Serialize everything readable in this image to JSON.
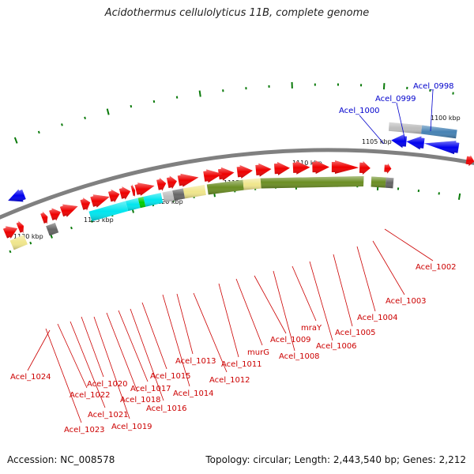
{
  "header": {
    "title": "Acidothermus cellulolyticus 11B, complete genome"
  },
  "footer": {
    "accession": "Accession: NC_008578",
    "summary": "Topology: circular; Length: 2,443,540 bp; Genes: 2,212"
  },
  "scale_labels": [
    "1100 kbp",
    "1105 kbp",
    "1110 kbp",
    "1115 kbp",
    "1120 kbp",
    "1125 kbp",
    "1130 kbp"
  ],
  "colors": {
    "forward_gene": "#0000ee",
    "reverse_gene": "#ee0000",
    "label_forward": "#0000cc",
    "label_reverse": "#cc0000",
    "backbone": "#808080",
    "tick": "#0a7a0a",
    "cat_olive": "#6b8e23",
    "cat_cyan": "#00e5ee",
    "cat_khaki": "#f0e68c",
    "cat_gray": "#bebebe",
    "cat_darkgray": "#666666",
    "cat_steel": "#4682b4",
    "cat_green": "#00cd00"
  },
  "forward_labels": [
    "Acel_0998",
    "Acel_0999",
    "Acel_1000"
  ],
  "reverse_labels": [
    "Acel_1002",
    "Acel_1003",
    "Acel_1004",
    "Acel_1005",
    "Acel_1006",
    "mraY",
    "Acel_1008",
    "Acel_1009",
    "murG",
    "Acel_1011",
    "Acel_1012",
    "Acel_1013",
    "Acel_1014",
    "Acel_1015",
    "Acel_1016",
    "Acel_1017",
    "Acel_1018",
    "Acel_1019",
    "Acel_1020",
    "Acel_1021",
    "Acel_1022",
    "Acel_1023",
    "Acel_1024"
  ]
}
